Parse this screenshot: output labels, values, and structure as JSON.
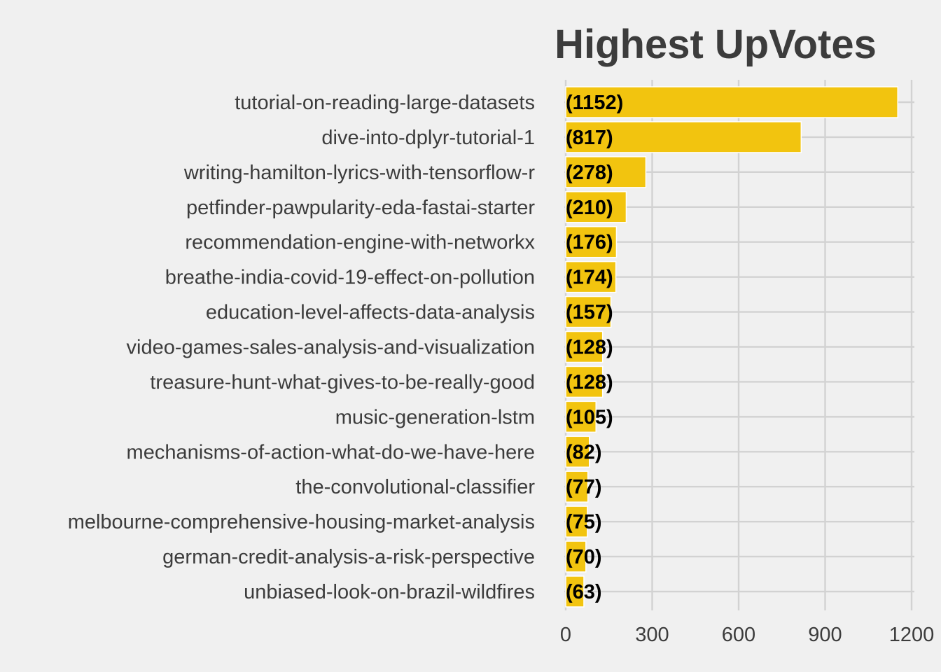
{
  "chart_data": {
    "type": "bar",
    "orientation": "horizontal",
    "title": "Highest UpVotes",
    "xlabel": "",
    "ylabel": "",
    "xlim": [
      0,
      1200
    ],
    "x_ticks": [
      0,
      300,
      600,
      900,
      1200
    ],
    "x_tick_labels": [
      "0",
      "300",
      "600",
      "900",
      "1200"
    ],
    "categories": [
      "tutorial-on-reading-large-datasets",
      "dive-into-dplyr-tutorial-1",
      "writing-hamilton-lyrics-with-tensorflow-r",
      "petfinder-pawpularity-eda-fastai-starter",
      "recommendation-engine-with-networkx",
      "breathe-india-covid-19-effect-on-pollution",
      "education-level-affects-data-analysis",
      "video-games-sales-analysis-and-visualization",
      "treasure-hunt-what-gives-to-be-really-good",
      "music-generation-lstm",
      "mechanisms-of-action-what-do-we-have-here",
      "the-convolutional-classifier",
      "melbourne-comprehensive-housing-market-analysis",
      "german-credit-analysis-a-risk-perspective",
      "unbiased-look-on-brazil-wildfires"
    ],
    "values": [
      1152,
      817,
      278,
      210,
      176,
      174,
      157,
      128,
      128,
      105,
      82,
      77,
      75,
      70,
      63
    ],
    "value_labels": [
      "(1152)",
      "(817)",
      "(278)",
      "(210)",
      "(176)",
      "(174)",
      "(157)",
      "(128)",
      "(128)",
      "(105)",
      "(82)",
      "(77)",
      "(75)",
      "(70)",
      "(63)"
    ],
    "bar_color": "#f2c40f",
    "background_color": "#f0f0f0",
    "grid": true,
    "legend": "none"
  }
}
